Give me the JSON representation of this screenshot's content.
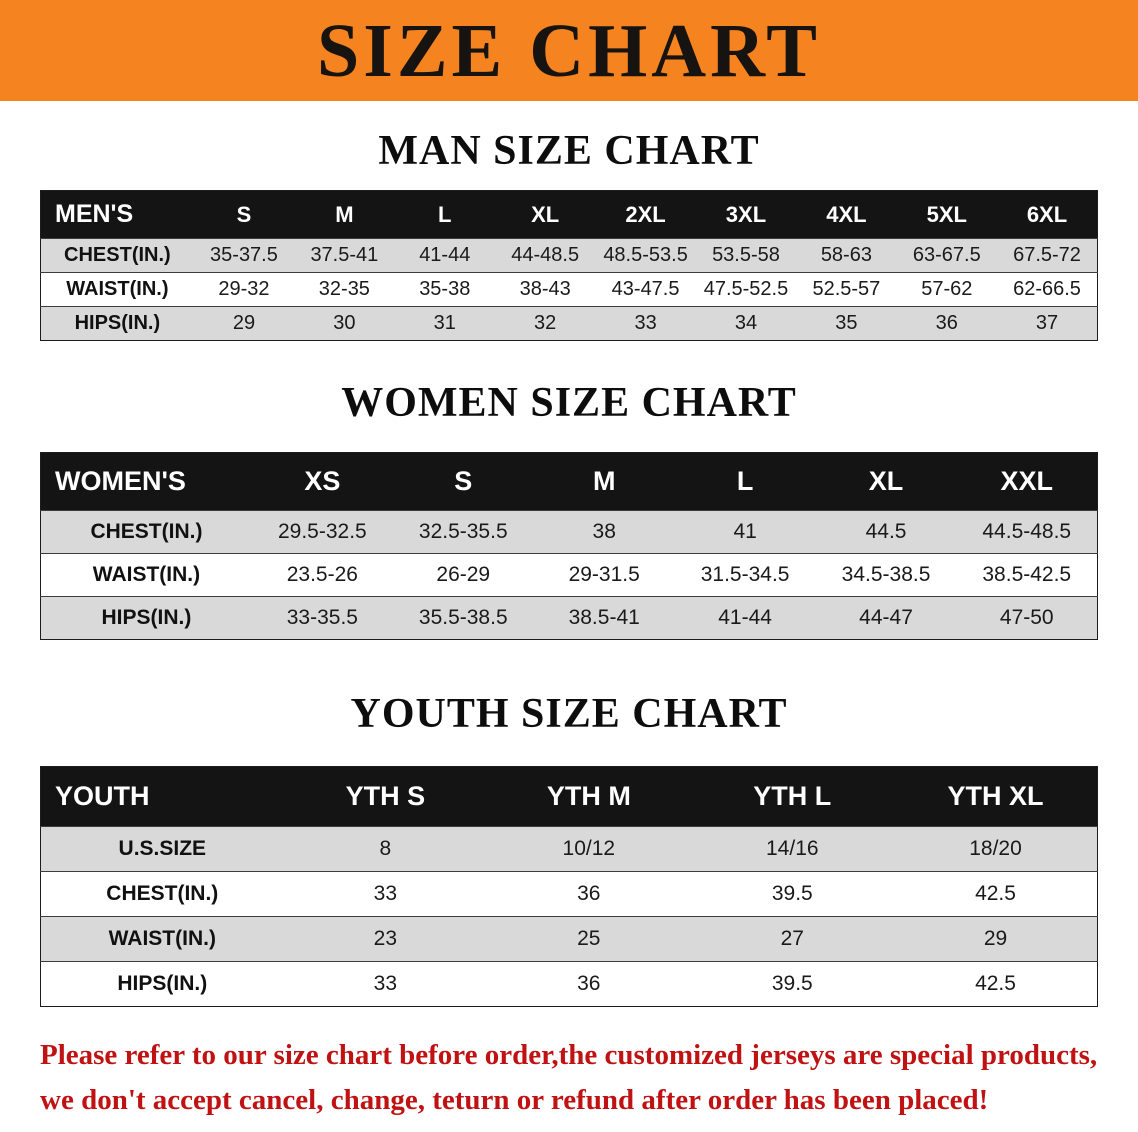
{
  "banner": {
    "title": "SIZE CHART"
  },
  "colors": {
    "banner_bg": "#F5831F",
    "table_header_bg": "#141414",
    "shaded_row_bg": "#D9D9D9",
    "disclaimer_text": "#C01212"
  },
  "men": {
    "heading": "MAN SIZE CHART",
    "table": {
      "header": [
        "MEN'S",
        "S",
        "M",
        "L",
        "XL",
        "2XL",
        "3XL",
        "4XL",
        "5XL",
        "6XL"
      ],
      "rows": [
        [
          "CHEST(IN.)",
          "35-37.5",
          "37.5-41",
          "41-44",
          "44-48.5",
          "48.5-53.5",
          "53.5-58",
          "58-63",
          "63-67.5",
          "67.5-72"
        ],
        [
          "WAIST(IN.)",
          "29-32",
          "32-35",
          "35-38",
          "38-43",
          "43-47.5",
          "47.5-52.5",
          "52.5-57",
          "57-62",
          "62-66.5"
        ],
        [
          "HIPS(IN.)",
          "29",
          "30",
          "31",
          "32",
          "33",
          "34",
          "35",
          "36",
          "37"
        ]
      ]
    }
  },
  "women": {
    "heading": "WOMEN SIZE CHART",
    "table": {
      "header": [
        "WOMEN'S",
        "XS",
        "S",
        "M",
        "L",
        "XL",
        "XXL"
      ],
      "rows": [
        [
          "CHEST(IN.)",
          "29.5-32.5",
          "32.5-35.5",
          "38",
          "41",
          "44.5",
          "44.5-48.5"
        ],
        [
          "WAIST(IN.)",
          "23.5-26",
          "26-29",
          "29-31.5",
          "31.5-34.5",
          "34.5-38.5",
          "38.5-42.5"
        ],
        [
          "HIPS(IN.)",
          "33-35.5",
          "35.5-38.5",
          "38.5-41",
          "41-44",
          "44-47",
          "47-50"
        ]
      ]
    }
  },
  "youth": {
    "heading": "YOUTH SIZE CHART",
    "table": {
      "header": [
        "YOUTH",
        "YTH S",
        "YTH M",
        "YTH L",
        "YTH XL"
      ],
      "rows": [
        [
          "U.S.SIZE",
          "8",
          "10/12",
          "14/16",
          "18/20"
        ],
        [
          "CHEST(IN.)",
          "33",
          "36",
          "39.5",
          "42.5"
        ],
        [
          "WAIST(IN.)",
          "23",
          "25",
          "27",
          "29"
        ],
        [
          "HIPS(IN.)",
          "33",
          "36",
          "39.5",
          "42.5"
        ]
      ]
    }
  },
  "disclaimer": {
    "line1": "Please refer to our size chart before order,the customized jerseys are special products,",
    "line2": "we don't accept cancel, change, teturn or refund after order has been placed!"
  }
}
